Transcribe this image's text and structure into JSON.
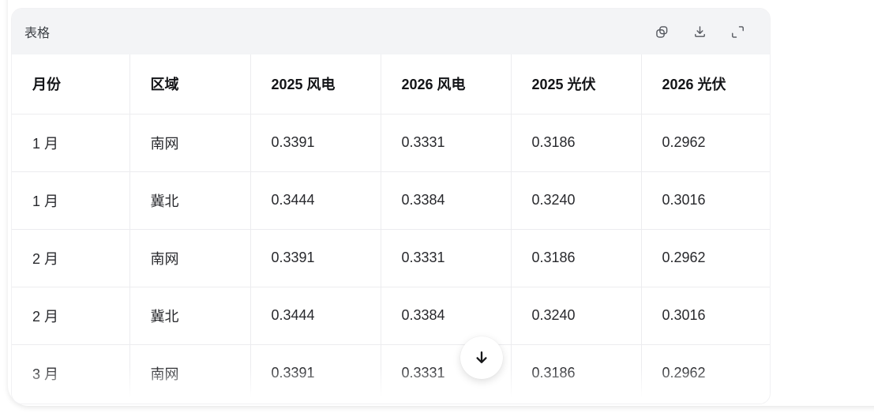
{
  "widget": {
    "title": "表格"
  },
  "toolbar": {
    "buttons": [
      {
        "name": "copy",
        "icon": "copy-icon"
      },
      {
        "name": "download",
        "icon": "download-icon"
      },
      {
        "name": "expand",
        "icon": "expand-icon"
      }
    ]
  },
  "table": {
    "columns": [
      "月份",
      "区域",
      "2025 风电",
      "2026 风电",
      "2025 光伏",
      "2026 光伏"
    ],
    "rows": [
      [
        "1 月",
        "南网",
        "0.3391",
        "0.3331",
        "0.3186",
        "0.2962"
      ],
      [
        "1 月",
        "冀北",
        "0.3444",
        "0.3384",
        "0.3240",
        "0.3016"
      ],
      [
        "2 月",
        "南网",
        "0.3391",
        "0.3331",
        "0.3186",
        "0.2962"
      ],
      [
        "2 月",
        "冀北",
        "0.3444",
        "0.3384",
        "0.3240",
        "0.3016"
      ],
      [
        "3 月",
        "南网",
        "0.3391",
        "0.3331",
        "0.3186",
        "0.2962"
      ]
    ]
  },
  "scroll_button": {
    "icon": "arrow-down-icon"
  },
  "colors": {
    "header_band": "#f3f4f6",
    "grid_border": "#ececef",
    "icon_gray": "#54575e",
    "text_dark": "#131417"
  }
}
